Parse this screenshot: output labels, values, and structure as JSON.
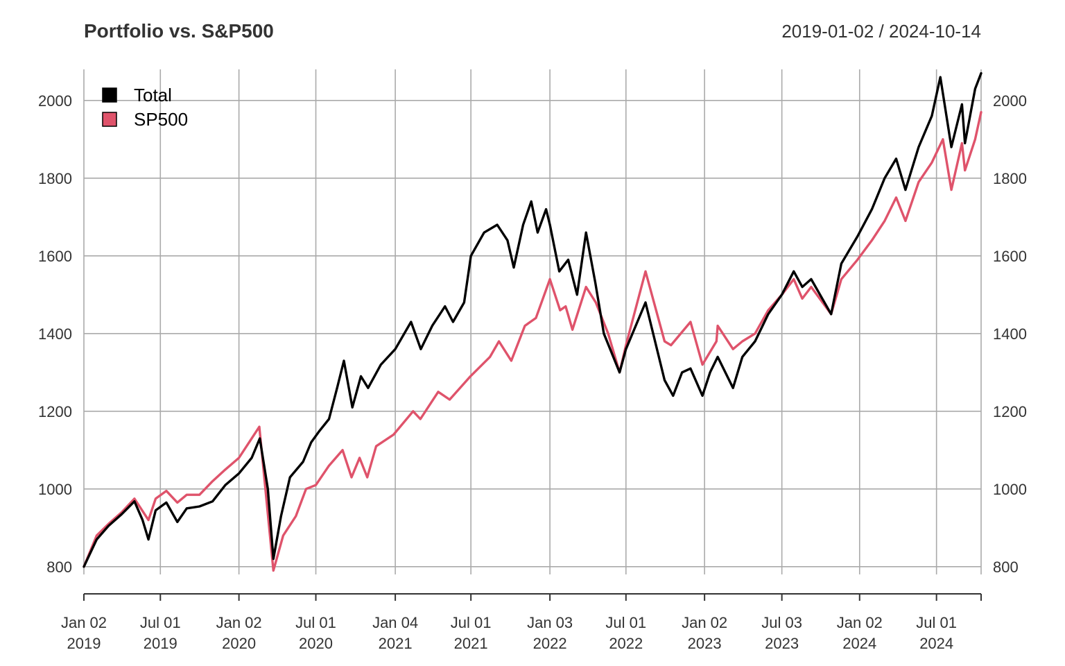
{
  "chart_data": {
    "type": "line",
    "title": "Portfolio vs. S&P500",
    "date_range": "2019-01-02 / 2024-10-14",
    "x_range": [
      "2019-01-02",
      "2024-10-14"
    ],
    "ylim": [
      780,
      2080
    ],
    "y_ticks": [
      800,
      1000,
      1200,
      1400,
      1600,
      1800,
      2000
    ],
    "x_ticks": [
      {
        "date": "2019-01-02",
        "label1": "Jan 02",
        "label2": "2019"
      },
      {
        "date": "2019-07-01",
        "label1": "Jul 01",
        "label2": "2019"
      },
      {
        "date": "2020-01-02",
        "label1": "Jan 02",
        "label2": "2020"
      },
      {
        "date": "2020-07-01",
        "label1": "Jul 01",
        "label2": "2020"
      },
      {
        "date": "2021-01-04",
        "label1": "Jan 04",
        "label2": "2021"
      },
      {
        "date": "2021-07-01",
        "label1": "Jul 01",
        "label2": "2021"
      },
      {
        "date": "2022-01-03",
        "label1": "Jan 03",
        "label2": "2022"
      },
      {
        "date": "2022-07-01",
        "label1": "Jul 01",
        "label2": "2022"
      },
      {
        "date": "2023-01-02",
        "label1": "Jan 02",
        "label2": "2023"
      },
      {
        "date": "2023-07-03",
        "label1": "Jul 03",
        "label2": "2023"
      },
      {
        "date": "2024-01-02",
        "label1": "Jan 02",
        "label2": "2024"
      },
      {
        "date": "2024-07-01",
        "label1": "Jul 01",
        "label2": "2024"
      }
    ],
    "grid": true,
    "legend_position": "top-left",
    "series": [
      {
        "name": "Total",
        "color": "#000000",
        "points": [
          [
            "2019-01-02",
            800
          ],
          [
            "2019-02-01",
            870
          ],
          [
            "2019-03-01",
            905
          ],
          [
            "2019-04-01",
            935
          ],
          [
            "2019-05-01",
            968
          ],
          [
            "2019-05-20",
            920
          ],
          [
            "2019-06-03",
            870
          ],
          [
            "2019-06-20",
            945
          ],
          [
            "2019-07-15",
            965
          ],
          [
            "2019-08-10",
            915
          ],
          [
            "2019-09-01",
            950
          ],
          [
            "2019-10-01",
            955
          ],
          [
            "2019-11-01",
            968
          ],
          [
            "2019-12-01",
            1010
          ],
          [
            "2020-01-02",
            1040
          ],
          [
            "2020-02-01",
            1080
          ],
          [
            "2020-02-20",
            1130
          ],
          [
            "2020-03-10",
            1000
          ],
          [
            "2020-03-23",
            820
          ],
          [
            "2020-04-10",
            930
          ],
          [
            "2020-05-01",
            1030
          ],
          [
            "2020-06-01",
            1070
          ],
          [
            "2020-06-20",
            1120
          ],
          [
            "2020-07-10",
            1150
          ],
          [
            "2020-08-01",
            1180
          ],
          [
            "2020-08-20",
            1260
          ],
          [
            "2020-09-05",
            1330
          ],
          [
            "2020-09-25",
            1210
          ],
          [
            "2020-10-15",
            1290
          ],
          [
            "2020-11-01",
            1260
          ],
          [
            "2020-12-01",
            1320
          ],
          [
            "2021-01-04",
            1360
          ],
          [
            "2021-02-10",
            1430
          ],
          [
            "2021-03-05",
            1360
          ],
          [
            "2021-04-01",
            1420
          ],
          [
            "2021-05-01",
            1470
          ],
          [
            "2021-05-20",
            1430
          ],
          [
            "2021-06-15",
            1480
          ],
          [
            "2021-07-01",
            1600
          ],
          [
            "2021-08-01",
            1660
          ],
          [
            "2021-09-01",
            1680
          ],
          [
            "2021-09-25",
            1640
          ],
          [
            "2021-10-10",
            1570
          ],
          [
            "2021-11-01",
            1680
          ],
          [
            "2021-11-20",
            1740
          ],
          [
            "2021-12-05",
            1660
          ],
          [
            "2021-12-25",
            1720
          ],
          [
            "2022-01-03",
            1680
          ],
          [
            "2022-01-25",
            1560
          ],
          [
            "2022-02-15",
            1590
          ],
          [
            "2022-03-08",
            1500
          ],
          [
            "2022-03-29",
            1660
          ],
          [
            "2022-04-20",
            1530
          ],
          [
            "2022-05-10",
            1400
          ],
          [
            "2022-06-16",
            1300
          ],
          [
            "2022-07-01",
            1360
          ],
          [
            "2022-08-16",
            1480
          ],
          [
            "2022-09-30",
            1280
          ],
          [
            "2022-10-20",
            1240
          ],
          [
            "2022-11-10",
            1300
          ],
          [
            "2022-11-30",
            1310
          ],
          [
            "2022-12-28",
            1240
          ],
          [
            "2023-01-15",
            1300
          ],
          [
            "2023-02-02",
            1340
          ],
          [
            "2023-03-10",
            1260
          ],
          [
            "2023-04-01",
            1340
          ],
          [
            "2023-05-01",
            1380
          ],
          [
            "2023-06-01",
            1450
          ],
          [
            "2023-07-03",
            1500
          ],
          [
            "2023-07-31",
            1560
          ],
          [
            "2023-08-20",
            1520
          ],
          [
            "2023-09-10",
            1540
          ],
          [
            "2023-10-27",
            1450
          ],
          [
            "2023-11-20",
            1580
          ],
          [
            "2023-12-28",
            1650
          ],
          [
            "2024-01-31",
            1720
          ],
          [
            "2024-03-01",
            1800
          ],
          [
            "2024-03-28",
            1850
          ],
          [
            "2024-04-19",
            1770
          ],
          [
            "2024-05-20",
            1880
          ],
          [
            "2024-06-20",
            1960
          ],
          [
            "2024-07-10",
            2060
          ],
          [
            "2024-08-05",
            1880
          ],
          [
            "2024-08-30",
            1990
          ],
          [
            "2024-09-06",
            1890
          ],
          [
            "2024-09-30",
            2030
          ],
          [
            "2024-10-14",
            2070
          ]
        ]
      },
      {
        "name": "SP500",
        "color": "#DF536B",
        "points": [
          [
            "2019-01-02",
            800
          ],
          [
            "2019-02-01",
            880
          ],
          [
            "2019-03-01",
            910
          ],
          [
            "2019-04-01",
            940
          ],
          [
            "2019-05-01",
            975
          ],
          [
            "2019-06-03",
            920
          ],
          [
            "2019-06-20",
            975
          ],
          [
            "2019-07-15",
            995
          ],
          [
            "2019-08-10",
            965
          ],
          [
            "2019-09-01",
            985
          ],
          [
            "2019-10-01",
            985
          ],
          [
            "2019-11-01",
            1020
          ],
          [
            "2019-12-01",
            1050
          ],
          [
            "2020-01-02",
            1080
          ],
          [
            "2020-02-19",
            1160
          ],
          [
            "2020-03-23",
            790
          ],
          [
            "2020-04-15",
            880
          ],
          [
            "2020-05-15",
            930
          ],
          [
            "2020-06-08",
            1000
          ],
          [
            "2020-07-01",
            1010
          ],
          [
            "2020-08-01",
            1060
          ],
          [
            "2020-09-02",
            1100
          ],
          [
            "2020-09-23",
            1030
          ],
          [
            "2020-10-12",
            1080
          ],
          [
            "2020-10-30",
            1030
          ],
          [
            "2020-11-20",
            1110
          ],
          [
            "2020-12-31",
            1140
          ],
          [
            "2021-02-15",
            1200
          ],
          [
            "2021-03-04",
            1180
          ],
          [
            "2021-04-15",
            1250
          ],
          [
            "2021-05-12",
            1230
          ],
          [
            "2021-06-30",
            1290
          ],
          [
            "2021-08-15",
            1340
          ],
          [
            "2021-09-05",
            1380
          ],
          [
            "2021-10-04",
            1330
          ],
          [
            "2021-11-05",
            1420
          ],
          [
            "2021-12-01",
            1440
          ],
          [
            "2022-01-03",
            1540
          ],
          [
            "2022-01-27",
            1460
          ],
          [
            "2022-02-09",
            1470
          ],
          [
            "2022-02-25",
            1410
          ],
          [
            "2022-03-29",
            1520
          ],
          [
            "2022-04-21",
            1480
          ],
          [
            "2022-05-20",
            1400
          ],
          [
            "2022-06-16",
            1300
          ],
          [
            "2022-07-01",
            1370
          ],
          [
            "2022-08-16",
            1560
          ],
          [
            "2022-09-30",
            1380
          ],
          [
            "2022-10-15",
            1370
          ],
          [
            "2022-11-30",
            1430
          ],
          [
            "2022-12-28",
            1320
          ],
          [
            "2023-01-30",
            1380
          ],
          [
            "2023-02-02",
            1420
          ],
          [
            "2023-03-10",
            1360
          ],
          [
            "2023-04-01",
            1380
          ],
          [
            "2023-05-01",
            1400
          ],
          [
            "2023-06-01",
            1460
          ],
          [
            "2023-07-03",
            1500
          ],
          [
            "2023-07-31",
            1540
          ],
          [
            "2023-08-20",
            1490
          ],
          [
            "2023-09-10",
            1520
          ],
          [
            "2023-10-27",
            1450
          ],
          [
            "2023-11-20",
            1540
          ],
          [
            "2023-12-28",
            1590
          ],
          [
            "2024-01-31",
            1640
          ],
          [
            "2024-03-01",
            1690
          ],
          [
            "2024-03-28",
            1750
          ],
          [
            "2024-04-19",
            1690
          ],
          [
            "2024-05-20",
            1790
          ],
          [
            "2024-06-20",
            1840
          ],
          [
            "2024-07-16",
            1900
          ],
          [
            "2024-08-05",
            1770
          ],
          [
            "2024-08-30",
            1890
          ],
          [
            "2024-09-06",
            1820
          ],
          [
            "2024-09-30",
            1900
          ],
          [
            "2024-10-14",
            1970
          ]
        ]
      }
    ]
  }
}
